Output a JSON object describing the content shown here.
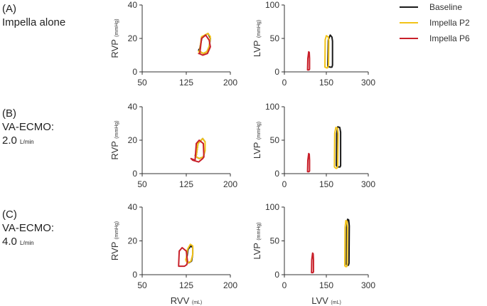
{
  "rows": [
    {
      "label_line1": "(A)",
      "label_line2": "Impella alone",
      "label_line3": "",
      "unit": ""
    },
    {
      "label_line1": "(B)",
      "label_line2": "VA-ECMO:",
      "label_line3": "2.0",
      "unit": "L/min"
    },
    {
      "label_line1": "(C)",
      "label_line2": "VA-ECMO:",
      "label_line3": "4.0",
      "unit": "L/min"
    }
  ],
  "legend": [
    {
      "name": "Baseline",
      "color": "#1a1a1a"
    },
    {
      "name": "Impella P2",
      "color": "#f2c318"
    },
    {
      "name": "Impella P6",
      "color": "#c8202a"
    }
  ],
  "chart_data": [
    {
      "type": "line",
      "panel": "A-RV",
      "ylabel": "RVP",
      "ylabel_unit": "(mmHg)",
      "xlabel": "",
      "xlabel_unit": "",
      "xlim": [
        50,
        200
      ],
      "ylim": [
        0,
        40
      ],
      "xticks": [
        "50",
        "125",
        "200"
      ],
      "yticks": [
        "0",
        "20",
        "40"
      ],
      "series": [
        {
          "name": "Baseline",
          "x": [
            148,
            152,
            162,
            166,
            164,
            160,
            154,
            149,
            146,
            148
          ],
          "y": [
            14,
            21,
            23,
            20,
            15,
            12,
            11,
            12,
            13,
            14
          ]
        },
        {
          "name": "Impella P2",
          "x": [
            148,
            151,
            162,
            166,
            164,
            160,
            154,
            149,
            146,
            148
          ],
          "y": [
            13,
            21,
            23,
            21,
            15,
            12,
            11,
            12,
            12,
            13
          ]
        },
        {
          "name": "Impella P6",
          "x": [
            148,
            151,
            158,
            164,
            166,
            161,
            153,
            147,
            146,
            148
          ],
          "y": [
            11,
            20,
            22,
            19,
            15,
            11,
            10,
            11,
            11,
            11
          ]
        }
      ]
    },
    {
      "type": "line",
      "panel": "A-LV",
      "ylabel": "LVP",
      "ylabel_unit": "(mmHg)",
      "xlabel": "",
      "xlabel_unit": "",
      "xlim": [
        0,
        300
      ],
      "ylim": [
        0,
        100
      ],
      "xticks": [
        "0",
        "150",
        "300"
      ],
      "yticks": [
        "0",
        "50",
        "100"
      ],
      "series": [
        {
          "name": "Baseline",
          "x": [
            155,
            157,
            164,
            170,
            172,
            172,
            170,
            164,
            158,
            155,
            155
          ],
          "y": [
            8,
            48,
            55,
            52,
            46,
            10,
            7,
            7,
            8,
            8,
            8
          ]
        },
        {
          "name": "Impella P2",
          "x": [
            145,
            146,
            150,
            157,
            159,
            158,
            154,
            150,
            147,
            145,
            145
          ],
          "y": [
            7,
            48,
            54,
            52,
            46,
            10,
            6,
            6,
            7,
            7,
            7
          ]
        },
        {
          "name": "Impella P6",
          "x": [
            83,
            84,
            87,
            89,
            90,
            90,
            88,
            86,
            84,
            83
          ],
          "y": [
            3,
            20,
            30,
            29,
            20,
            4,
            3,
            3,
            3,
            3
          ]
        }
      ]
    },
    {
      "type": "line",
      "panel": "B-RV",
      "ylabel": "RVP",
      "ylabel_unit": "(mmHg)",
      "xlabel": "",
      "xlabel_unit": "",
      "xlim": [
        50,
        200
      ],
      "ylim": [
        0,
        40
      ],
      "xticks": [
        "50",
        "125",
        "200"
      ],
      "yticks": [
        "0",
        "20",
        "40"
      ],
      "series": [
        {
          "name": "Baseline",
          "x": [
            142,
            145,
            153,
            157,
            157,
            154,
            147,
            142,
            140,
            142
          ],
          "y": [
            11,
            18,
            21,
            19,
            14,
            10,
            9,
            10,
            11,
            11
          ]
        },
        {
          "name": "Impella P2",
          "x": [
            142,
            145,
            153,
            157,
            157,
            154,
            147,
            142,
            140,
            142
          ],
          "y": [
            11,
            18,
            21,
            19,
            14,
            10,
            9,
            10,
            11,
            11
          ]
        },
        {
          "name": "Impella P6",
          "x": [
            140,
            142,
            147,
            154,
            155,
            153,
            146,
            136,
            133,
            140
          ],
          "y": [
            8,
            18,
            20,
            18,
            10,
            9,
            7,
            8,
            9,
            8
          ]
        }
      ]
    },
    {
      "type": "line",
      "panel": "B-LV",
      "ylabel": "LVP",
      "ylabel_unit": "(mmHg)",
      "xlabel": "",
      "xlabel_unit": "",
      "xlim": [
        0,
        300
      ],
      "ylim": [
        0,
        100
      ],
      "xticks": [
        "0",
        "150",
        "300"
      ],
      "yticks": [
        "0",
        "50",
        "100"
      ],
      "series": [
        {
          "name": "Baseline",
          "x": [
            186,
            187,
            191,
            198,
            201,
            201,
            199,
            193,
            188,
            186,
            186
          ],
          "y": [
            12,
            60,
            70,
            69,
            62,
            12,
            10,
            10,
            11,
            12,
            12
          ]
        },
        {
          "name": "Impella P2",
          "x": [
            179,
            180,
            184,
            190,
            192,
            191,
            188,
            184,
            181,
            179,
            179
          ],
          "y": [
            10,
            60,
            69,
            68,
            60,
            11,
            8,
            8,
            9,
            10,
            10
          ]
        },
        {
          "name": "Impella P6",
          "x": [
            83,
            84,
            87,
            89,
            90,
            90,
            88,
            86,
            84,
            83
          ],
          "y": [
            3,
            20,
            30,
            29,
            20,
            4,
            3,
            3,
            3,
            3
          ]
        }
      ]
    },
    {
      "type": "line",
      "panel": "C-RV",
      "ylabel": "RVP",
      "ylabel_unit": "(mmHg)",
      "xlabel": "RVV",
      "xlabel_unit": "(mL)",
      "xlim": [
        50,
        200
      ],
      "ylim": [
        0,
        40
      ],
      "xticks": [
        "50",
        "125",
        "200"
      ],
      "yticks": [
        "0",
        "20",
        "40"
      ],
      "series": [
        {
          "name": "Baseline",
          "x": [
            126,
            128,
            133,
            136,
            136,
            134,
            129,
            126,
            125,
            126
          ],
          "y": [
            10,
            15,
            17,
            16,
            12,
            8,
            7,
            8,
            9,
            10
          ]
        },
        {
          "name": "Impella P2",
          "x": [
            125,
            127,
            132,
            136,
            136,
            133,
            128,
            125,
            124,
            125
          ],
          "y": [
            10,
            15,
            18,
            17,
            12,
            8,
            7,
            8,
            9,
            10
          ]
        },
        {
          "name": "Impella P6",
          "x": [
            112,
            113,
            118,
            125,
            127,
            126,
            122,
            115,
            112,
            112
          ],
          "y": [
            6,
            14,
            16,
            14,
            8,
            6,
            5,
            5,
            5,
            6
          ]
        }
      ]
    },
    {
      "type": "line",
      "panel": "C-LV",
      "ylabel": "LVP",
      "ylabel_unit": "(mmHg)",
      "xlabel": "LVV",
      "xlabel_unit": "(mL)",
      "xlim": [
        0,
        300
      ],
      "ylim": [
        0,
        100
      ],
      "xticks": [
        "0",
        "150",
        "300"
      ],
      "yticks": [
        "0",
        "50",
        "100"
      ],
      "series": [
        {
          "name": "Baseline",
          "x": [
            222,
            223,
            226,
            230,
            232,
            231,
            229,
            225,
            223,
            222,
            222
          ],
          "y": [
            15,
            70,
            82,
            81,
            72,
            17,
            14,
            14,
            15,
            15,
            15
          ]
        },
        {
          "name": "Impella P2",
          "x": [
            216,
            217,
            220,
            224,
            226,
            225,
            223,
            219,
            217,
            216,
            216
          ],
          "y": [
            13,
            70,
            80,
            79,
            70,
            15,
            12,
            12,
            13,
            13,
            13
          ]
        },
        {
          "name": "Impella P6",
          "x": [
            97,
            98,
            101,
            103,
            104,
            104,
            102,
            100,
            98,
            97
          ],
          "y": [
            3,
            22,
            32,
            31,
            22,
            4,
            3,
            3,
            3,
            3
          ]
        }
      ]
    }
  ]
}
